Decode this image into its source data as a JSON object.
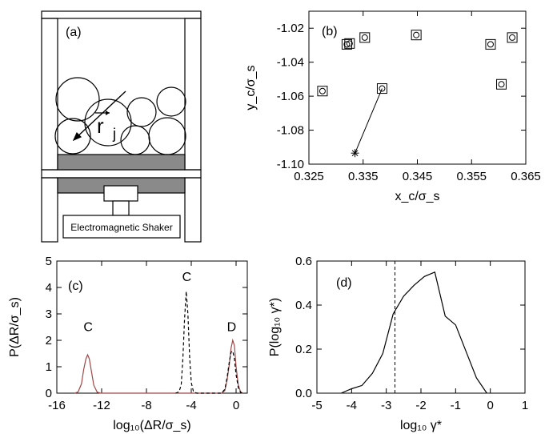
{
  "panel_a": {
    "tag": "(a)",
    "vector_label": "r",
    "vector_subscript": "j",
    "shaker_label": "Electromagnetic Shaker"
  },
  "chart_data": [
    {
      "id": "b",
      "type": "scatter",
      "tag": "(b)",
      "xlabel": "x_c/σ_s",
      "ylabel": "y_c/σ_s",
      "xlim": [
        0.325,
        0.365
      ],
      "ylim": [
        -1.1,
        -1.01
      ],
      "xticks": [
        0.325,
        0.335,
        0.345,
        0.355,
        0.365
      ],
      "yticks": [
        -1.02,
        -1.04,
        -1.06,
        -1.08,
        -1.1
      ],
      "series": [
        {
          "marker": "square",
          "points": [
            [
              0.3275,
              -1.057
            ],
            [
              0.332,
              -1.0295
            ],
            [
              0.3325,
              -1.029
            ],
            [
              0.3353,
              -1.0255
            ],
            [
              0.3385,
              -1.0555
            ],
            [
              0.3448,
              -1.024
            ],
            [
              0.3585,
              -1.0295
            ],
            [
              0.3605,
              -1.053
            ],
            [
              0.3625,
              -1.0255
            ]
          ]
        },
        {
          "marker": "circle",
          "points": [
            [
              0.3275,
              -1.057
            ],
            [
              0.332,
              -1.0295
            ],
            [
              0.3325,
              -1.029
            ],
            [
              0.3353,
              -1.0255
            ],
            [
              0.3385,
              -1.0555
            ],
            [
              0.3448,
              -1.024
            ],
            [
              0.3585,
              -1.0295
            ],
            [
              0.3605,
              -1.053
            ],
            [
              0.3625,
              -1.0255
            ]
          ]
        },
        {
          "marker": "star-with-line",
          "points": [
            [
              0.3335,
              -1.0935
            ],
            [
              0.3385,
              -1.0555
            ]
          ]
        }
      ]
    },
    {
      "id": "c",
      "type": "line",
      "tag": "(c)",
      "xlabel": "log₁₀(ΔR/σ_s)",
      "ylabel": "P(ΔR/σ_s)",
      "xlim": [
        -16,
        1
      ],
      "ylim": [
        0,
        5
      ],
      "xticks": [
        -16,
        -12,
        -8,
        -4,
        0
      ],
      "yticks": [
        0,
        1,
        2,
        3,
        4,
        5
      ],
      "annotations": [
        {
          "text": "C",
          "x": -13.2,
          "y": 2.35
        },
        {
          "text": "C",
          "x": -4.4,
          "y": 4.25
        },
        {
          "text": "D",
          "x": -0.4,
          "y": 2.35
        }
      ],
      "series": [
        {
          "style": "solid",
          "color": "#a04848",
          "points": [
            [
              -14.4,
              0
            ],
            [
              -14.1,
              0.05
            ],
            [
              -13.8,
              0.35
            ],
            [
              -13.6,
              0.9
            ],
            [
              -13.4,
              1.3
            ],
            [
              -13.25,
              1.45
            ],
            [
              -13.1,
              1.3
            ],
            [
              -12.9,
              0.8
            ],
            [
              -12.7,
              0.3
            ],
            [
              -12.4,
              0.04
            ],
            [
              -12.1,
              0
            ],
            [
              -1.3,
              0
            ],
            [
              -1.0,
              0.1
            ],
            [
              -0.8,
              0.5
            ],
            [
              -0.6,
              1.1
            ],
            [
              -0.45,
              1.7
            ],
            [
              -0.3,
              2.0
            ],
            [
              -0.15,
              1.8
            ],
            [
              0.0,
              1.0
            ],
            [
              0.2,
              0.3
            ],
            [
              0.4,
              0.05
            ],
            [
              0.6,
              0
            ]
          ]
        },
        {
          "style": "dashed",
          "color": "#000000",
          "points": [
            [
              -5.4,
              0
            ],
            [
              -5.1,
              0.05
            ],
            [
              -4.9,
              0.3
            ],
            [
              -4.75,
              1.3
            ],
            [
              -4.6,
              2.8
            ],
            [
              -4.45,
              3.85
            ],
            [
              -4.3,
              3.0
            ],
            [
              -4.15,
              1.4
            ],
            [
              -4.0,
              0.4
            ],
            [
              -3.8,
              0.05
            ],
            [
              -3.5,
              0
            ],
            [
              -1.3,
              0
            ],
            [
              -1.0,
              0.15
            ],
            [
              -0.8,
              0.6
            ],
            [
              -0.6,
              1.2
            ],
            [
              -0.45,
              1.55
            ],
            [
              -0.3,
              1.6
            ],
            [
              -0.15,
              1.3
            ],
            [
              0.0,
              0.7
            ],
            [
              0.2,
              0.2
            ],
            [
              0.4,
              0.03
            ],
            [
              0.6,
              0
            ]
          ]
        }
      ]
    },
    {
      "id": "d",
      "type": "line",
      "tag": "(d)",
      "xlabel": "log₁₀ γ*",
      "ylabel": "P(log₁₀ γ*)",
      "xlim": [
        -5,
        1
      ],
      "ylim": [
        0,
        0.6
      ],
      "xticks": [
        -5,
        -4,
        -3,
        -2,
        -1,
        0,
        1
      ],
      "yticks": [
        0.0,
        0.2,
        0.4,
        0.6
      ],
      "vline": -2.75,
      "series": [
        {
          "style": "solid",
          "color": "#000000",
          "points": [
            [
              -4.3,
              0.0
            ],
            [
              -4.0,
              0.02
            ],
            [
              -3.7,
              0.035
            ],
            [
              -3.4,
              0.09
            ],
            [
              -3.1,
              0.18
            ],
            [
              -2.8,
              0.36
            ],
            [
              -2.5,
              0.44
            ],
            [
              -2.2,
              0.49
            ],
            [
              -1.9,
              0.53
            ],
            [
              -1.6,
              0.55
            ],
            [
              -1.3,
              0.35
            ],
            [
              -1.0,
              0.31
            ],
            [
              -0.7,
              0.19
            ],
            [
              -0.4,
              0.07
            ],
            [
              -0.1,
              0.0
            ]
          ]
        }
      ]
    }
  ]
}
